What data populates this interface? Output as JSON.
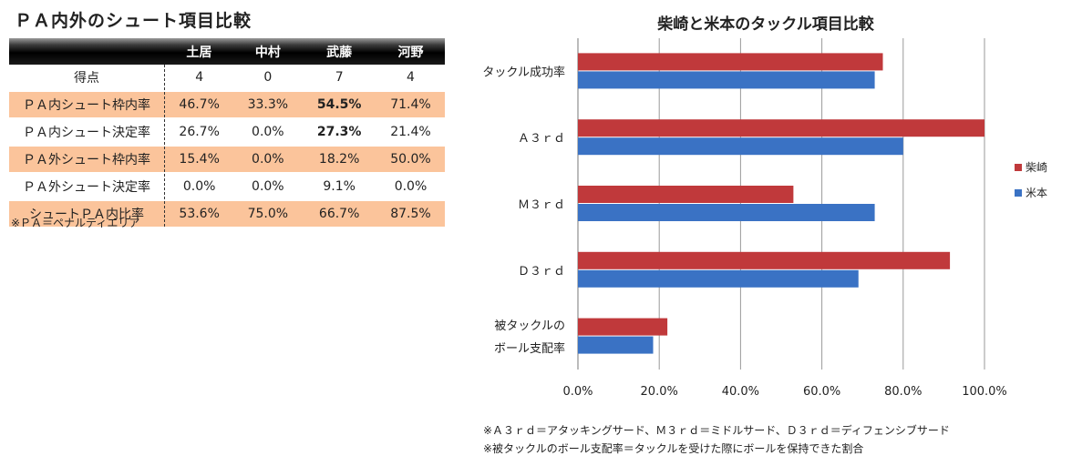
{
  "table": {
    "title": "ＰＡ内外のシュート項目比較",
    "headers": [
      "",
      "土居",
      "中村",
      "武藤",
      "河野"
    ],
    "rows": [
      {
        "label": "得点",
        "values": [
          "4",
          "0",
          "7",
          "4"
        ],
        "shaded": false,
        "bold_index": -1
      },
      {
        "label": "ＰＡ内シュート枠内率",
        "values": [
          "46.7%",
          "33.3%",
          "54.5%",
          "71.4%"
        ],
        "shaded": true,
        "bold_index": 2
      },
      {
        "label": "ＰＡ内シュート決定率",
        "values": [
          "26.7%",
          "0.0%",
          "27.3%",
          "21.4%"
        ],
        "shaded": false,
        "bold_index": 2
      },
      {
        "label": "ＰＡ外シュート枠内率",
        "values": [
          "15.4%",
          "0.0%",
          "18.2%",
          "50.0%"
        ],
        "shaded": true,
        "bold_index": -1
      },
      {
        "label": "ＰＡ外シュート決定率",
        "values": [
          "0.0%",
          "0.0%",
          "9.1%",
          "0.0%"
        ],
        "shaded": false,
        "bold_index": -1
      },
      {
        "label": "シュートＰＡ内比率",
        "values": [
          "53.6%",
          "75.0%",
          "66.7%",
          "87.5%"
        ],
        "shaded": true,
        "bold_index": -1
      }
    ],
    "note": "※ＰＡ＝ペナルティエリア"
  },
  "chart_data": {
    "type": "bar",
    "orientation": "horizontal",
    "title": "柴崎と米本のタックル項目比較",
    "categories": [
      [
        "タックル成功率"
      ],
      [
        "Ａ３ｒｄ"
      ],
      [
        "Ｍ３ｒｄ"
      ],
      [
        "Ｄ３ｒｄ"
      ],
      [
        "被タックルの",
        "ボール支配率"
      ]
    ],
    "series": [
      {
        "name": "柴崎",
        "color": "#c0393b",
        "values": [
          0.75,
          1.0,
          0.53,
          0.915,
          0.22
        ]
      },
      {
        "name": "米本",
        "color": "#3a72c4",
        "values": [
          0.73,
          0.8,
          0.73,
          0.69,
          0.185
        ]
      }
    ],
    "xlim": [
      0,
      1
    ],
    "xticks": [
      "0.0%",
      "20.0%",
      "40.0%",
      "60.0%",
      "80.0%",
      "100.0%"
    ],
    "legend": "right",
    "grid": true
  },
  "notes": [
    "※Ａ３ｒｄ＝アタッキングサード、Ｍ３ｒｄ＝ミドルサード、Ｄ３ｒｄ＝ディフェンシブサード",
    "※被タックルのボール支配率＝タックルを受けた際にボールを保持できた割合"
  ]
}
